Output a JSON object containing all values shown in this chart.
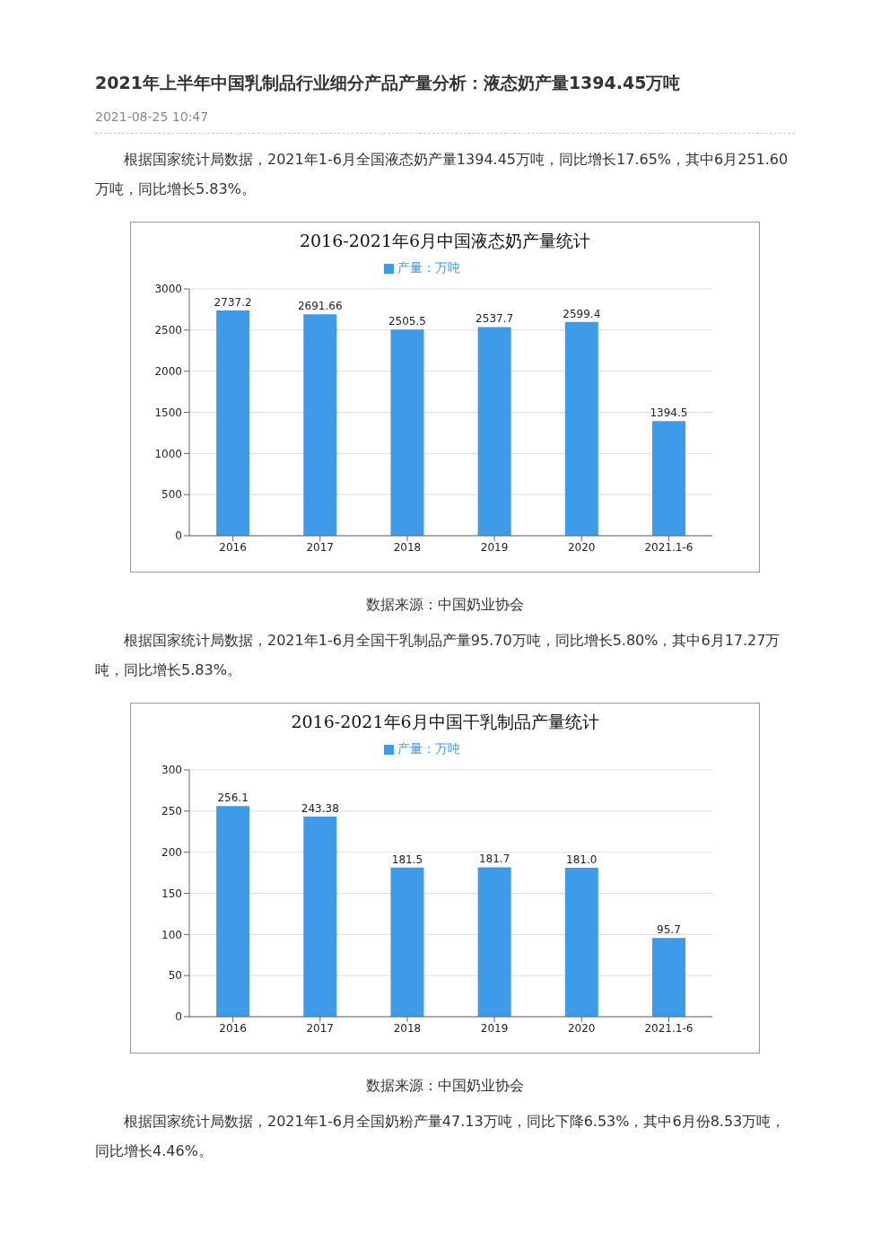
{
  "chart_data": [
    {
      "type": "other",
      "title": "2021年上半年中国乳制品行业细分产品产量分析：液态奶产量1394.45万吨",
      "subtitle": "2021-08-25 10:47",
      "annotations": [
        "根据国家统计局数据，2021年1-6月全国液态奶产量1394.45万吨，同比增长17.65%，其中6月251.60万吨，同比增长5.83%。"
      ]
    },
    {
      "type": "bar",
      "title": "2016-2021年6月中国液态奶产量统计",
      "categories": [
        "2016",
        "2017",
        "2018",
        "2019",
        "2020",
        "2021.1-6"
      ],
      "series": [
        {
          "name": "产量：万吨",
          "color": "#3d9be9",
          "values": [
            2737.2,
            2691.66,
            2505.5,
            2537.7,
            2599.4,
            1394.5
          ],
          "value_labels": [
            "2737.2",
            "2691.66",
            "2505.5",
            "2537.7",
            "2599.4",
            "1394.5"
          ]
        }
      ],
      "ylim": [
        0,
        3000
      ],
      "yticks": [
        0,
        500,
        1000,
        1500,
        2000,
        2500,
        3000
      ],
      "grid": "y",
      "legend": "top",
      "annotations": [
        "数据来源：中国奶业协会"
      ]
    },
    {
      "type": "other",
      "annotations": [
        "根据国家统计局数据，2021年1-6月全国干乳制品产量95.70万吨，同比增长5.80%，其中6月17.27万吨，同比增长5.83%。"
      ]
    },
    {
      "type": "bar",
      "title": "2016-2021年6月中国干乳制品产量统计",
      "categories": [
        "2016",
        "2017",
        "2018",
        "2019",
        "2020",
        "2021.1-6"
      ],
      "series": [
        {
          "name": "产量：万吨",
          "color": "#3d9be9",
          "values": [
            256.1,
            243.38,
            181.5,
            181.7,
            181.0,
            95.7
          ],
          "value_labels": [
            "256.1",
            "243.38",
            "181.5",
            "181.7",
            "181.0",
            "95.7"
          ]
        }
      ],
      "ylim": [
        0,
        300
      ],
      "yticks": [
        0,
        50,
        100,
        150,
        200,
        250,
        300
      ],
      "grid": "y",
      "legend": "top",
      "annotations": [
        "数据来源：中国奶业协会"
      ]
    },
    {
      "type": "other",
      "annotations": [
        "根据国家统计局数据，2021年1-6月全国奶粉产量47.13万吨，同比下降6.53%，其中6月份8.53万吨，同比增长4.46%。"
      ]
    }
  ]
}
